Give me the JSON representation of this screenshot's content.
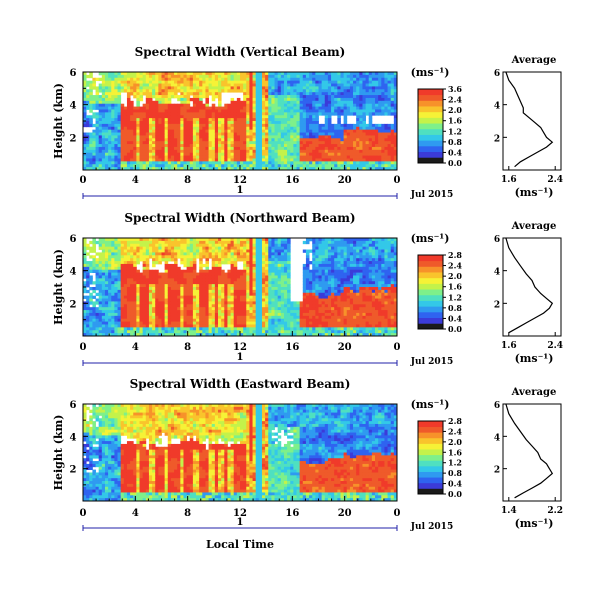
{
  "colors": {
    "colorbar": [
      "#1a1a1a",
      "#3b3bd9",
      "#2f63f0",
      "#2f9af0",
      "#33c8e8",
      "#4fe0c0",
      "#7ef08a",
      "#c4f24a",
      "#f6f236",
      "#f9c42c",
      "#f7922a",
      "#ef5a2a",
      "#f03a2a"
    ],
    "missing": "#ffffff",
    "ruler": "#2222aa"
  },
  "shared": {
    "ylabel": "Height (km)",
    "xlabel": "Local Time",
    "date_label": "Jul 2015",
    "ruler_label": "1",
    "unit_label": "(ms⁻¹)",
    "avg_title": "Average",
    "avg_xlabel": "(ms⁻¹)"
  },
  "chart_data": [
    {
      "type": "heatmap",
      "title": "Spectral Width (Vertical Beam)",
      "x_ticks": [
        "0",
        "4",
        "8",
        "12",
        "16",
        "20",
        "0"
      ],
      "xlim": [
        0,
        24
      ],
      "y_ticks": [
        "6",
        "4",
        "2"
      ],
      "ylim": [
        0,
        6
      ],
      "colorbar": {
        "ticks": [
          "3.6",
          "2.4",
          "2.0",
          "1.6",
          "1.2",
          "0.8",
          "0.4",
          "0.0"
        ]
      },
      "average": {
        "x_ticks": [
          "1.6",
          "2.4"
        ],
        "xlim": [
          1.5,
          2.5
        ],
        "y_ticks": [
          "6",
          "4",
          "2"
        ],
        "ylim": [
          0,
          6
        ],
        "x": [
          1.55,
          1.6,
          1.7,
          1.75,
          1.8,
          1.85,
          1.85,
          1.95,
          2.05,
          2.15,
          2.2,
          2.25,
          2.35,
          2.25,
          2.1,
          1.95,
          1.8,
          1.7
        ],
        "y": [
          6.0,
          5.5,
          5.0,
          4.6,
          4.2,
          3.8,
          3.5,
          3.2,
          2.9,
          2.6,
          2.3,
          2.0,
          1.7,
          1.4,
          1.1,
          0.8,
          0.5,
          0.2
        ]
      }
    },
    {
      "type": "heatmap",
      "title": "Spectral Width (Northward Beam)",
      "x_ticks": [
        "0",
        "4",
        "8",
        "12",
        "16",
        "20",
        "0"
      ],
      "xlim": [
        0,
        24
      ],
      "y_ticks": [
        "6",
        "4",
        "2"
      ],
      "ylim": [
        0,
        6
      ],
      "colorbar": {
        "ticks": [
          "2.8",
          "2.4",
          "2.0",
          "1.6",
          "1.2",
          "0.8",
          "0.4",
          "0.0"
        ]
      },
      "average": {
        "x_ticks": [
          "1.6",
          "2.4"
        ],
        "xlim": [
          1.5,
          2.5
        ],
        "y_ticks": [
          "6",
          "4",
          "2"
        ],
        "ylim": [
          0,
          6
        ],
        "x": [
          1.55,
          1.6,
          1.7,
          1.8,
          1.9,
          2.0,
          2.05,
          2.15,
          2.25,
          2.35,
          2.3,
          2.2,
          2.05,
          1.9,
          1.75,
          1.6
        ],
        "y": [
          6.0,
          5.4,
          4.8,
          4.3,
          3.8,
          3.4,
          3.0,
          2.6,
          2.3,
          2.0,
          1.7,
          1.4,
          1.1,
          0.8,
          0.5,
          0.2
        ]
      }
    },
    {
      "type": "heatmap",
      "title": "Spectral Width (Eastward Beam)",
      "x_ticks": [
        "0",
        "4",
        "8",
        "12",
        "16",
        "20",
        "0"
      ],
      "xlim": [
        0,
        24
      ],
      "y_ticks": [
        "6",
        "4",
        "2"
      ],
      "ylim": [
        0,
        6
      ],
      "colorbar": {
        "ticks": [
          "2.8",
          "2.4",
          "2.0",
          "1.6",
          "1.2",
          "0.8",
          "0.4",
          "0.0"
        ]
      },
      "average": {
        "x_ticks": [
          "1.4",
          "2.2"
        ],
        "xlim": [
          1.3,
          2.3
        ],
        "y_ticks": [
          "6",
          "4",
          "2"
        ],
        "ylim": [
          0,
          6
        ],
        "x": [
          1.35,
          1.4,
          1.5,
          1.6,
          1.7,
          1.8,
          1.9,
          1.95,
          2.05,
          2.1,
          2.15,
          2.05,
          1.95,
          1.8,
          1.65,
          1.5
        ],
        "y": [
          6.0,
          5.4,
          4.8,
          4.3,
          3.8,
          3.4,
          3.0,
          2.6,
          2.3,
          2.0,
          1.7,
          1.4,
          1.1,
          0.8,
          0.5,
          0.2
        ]
      }
    }
  ]
}
